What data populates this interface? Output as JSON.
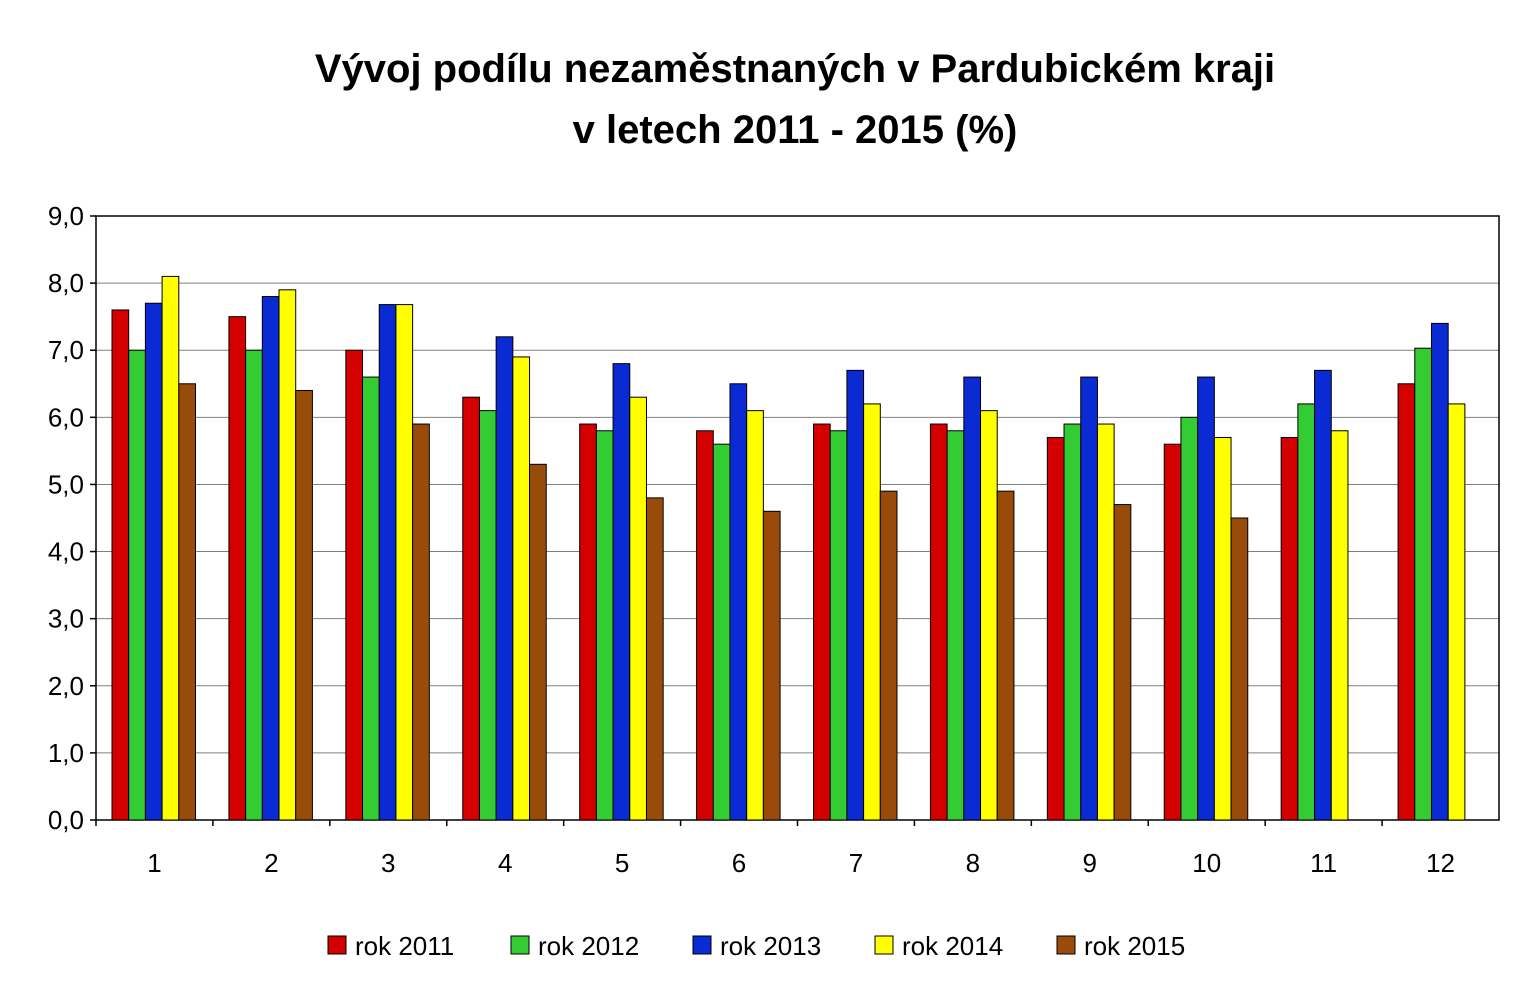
{
  "chart_data": {
    "type": "bar",
    "title": [
      "Vývoj podílu nezaměstnaných v Pardubickém kraji",
      "v letech 2011 - 2015 (%)"
    ],
    "xlabel": "",
    "ylabel": "",
    "ylim": [
      0,
      9
    ],
    "y_ticks": [
      "0,0",
      "1,0",
      "2,0",
      "3,0",
      "4,0",
      "5,0",
      "6,0",
      "7,0",
      "8,0",
      "9,0"
    ],
    "categories": [
      "1",
      "2",
      "3",
      "4",
      "5",
      "6",
      "7",
      "8",
      "9",
      "10",
      "11",
      "12"
    ],
    "grid": true,
    "legend_position": "bottom",
    "series": [
      {
        "name": "rok 2011",
        "color": "#d40000",
        "values": [
          7.6,
          7.5,
          7.0,
          6.3,
          5.9,
          5.8,
          5.9,
          5.9,
          5.7,
          5.6,
          5.7,
          6.5
        ]
      },
      {
        "name": "rok 2012",
        "color": "#33cc33",
        "values": [
          7.0,
          7.0,
          6.6,
          6.1,
          5.8,
          5.6,
          5.8,
          5.8,
          5.9,
          6.0,
          6.2,
          7.03
        ]
      },
      {
        "name": "rok 2013",
        "color": "#0a2ad4",
        "values": [
          7.7,
          7.8,
          7.68,
          7.2,
          6.8,
          6.5,
          6.7,
          6.6,
          6.6,
          6.6,
          6.7,
          7.4
        ]
      },
      {
        "name": "rok 2014",
        "color": "#ffff00",
        "values": [
          8.1,
          7.9,
          7.68,
          6.9,
          6.3,
          6.1,
          6.2,
          6.1,
          5.9,
          5.7,
          5.8,
          6.2
        ]
      },
      {
        "name": "rok 2015",
        "color": "#994c0a",
        "values": [
          6.5,
          6.4,
          5.9,
          5.3,
          4.8,
          4.6,
          4.9,
          4.9,
          4.7,
          4.5,
          null,
          null
        ]
      }
    ]
  }
}
